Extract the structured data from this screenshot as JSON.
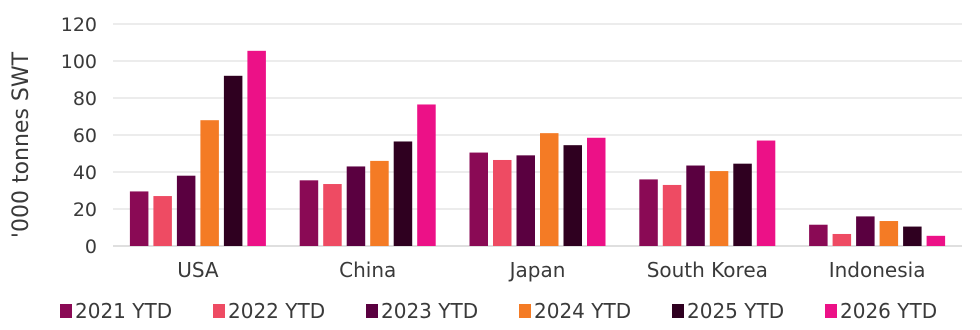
{
  "chart_data": {
    "type": "bar",
    "title": "",
    "xlabel": "",
    "ylabel": "'000 tonnes SWT",
    "ylim": [
      0,
      120
    ],
    "yticks": [
      0,
      20,
      40,
      60,
      80,
      100,
      120
    ],
    "grid": true,
    "legend_position": "bottom",
    "categories": [
      "USA",
      "China",
      "Japan",
      "South Korea",
      "Indonesia"
    ],
    "series": [
      {
        "name": "2021 YTD",
        "color": "#8a0a55",
        "values": [
          29.5,
          35.5,
          50.5,
          36,
          11.5
        ]
      },
      {
        "name": "2022 YTD",
        "color": "#ee4b63",
        "values": [
          27,
          33.5,
          46.5,
          33,
          6.5
        ]
      },
      {
        "name": "2023 YTD",
        "color": "#5a0040",
        "values": [
          38,
          43,
          49,
          43.5,
          16
        ]
      },
      {
        "name": "2024 YTD",
        "color": "#f47b25",
        "values": [
          68,
          46,
          61,
          40.5,
          13.5
        ]
      },
      {
        "name": "2025 YTD",
        "color": "#2f0020",
        "values": [
          92,
          56.5,
          54.5,
          44.5,
          10.5
        ]
      },
      {
        "name": "2026 YTD",
        "color": "#ec1187",
        "values": [
          105.5,
          76.5,
          58.5,
          57,
          5.5
        ]
      }
    ]
  }
}
